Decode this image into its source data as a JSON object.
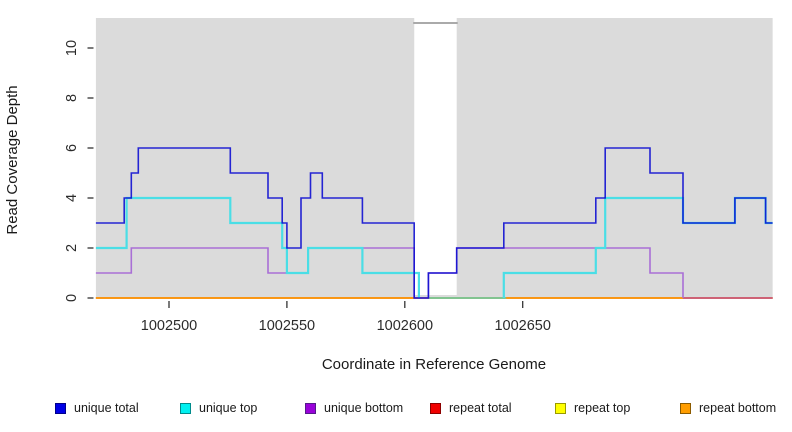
{
  "chart_data": {
    "type": "line",
    "subtype": "step-coverage",
    "xlabel": "Coordinate in Reference Genome",
    "ylabel": "Read Coverage Depth",
    "xlim": [
      1002469,
      1002756
    ],
    "ylim": [
      0,
      11.2
    ],
    "grid": false,
    "plot_bg_color": "#dbdbdb",
    "x_ticks": [
      {
        "value": 1002500,
        "label": "1002500"
      },
      {
        "value": 1002550,
        "label": "1002550"
      },
      {
        "value": 1002600,
        "label": "1002600"
      },
      {
        "value": 1002650,
        "label": "1002650"
      }
    ],
    "y_ticks": [
      {
        "value": 0,
        "label": "0"
      },
      {
        "value": 2,
        "label": "2"
      },
      {
        "value": 4,
        "label": "4"
      },
      {
        "value": 6,
        "label": "6"
      },
      {
        "value": 8,
        "label": "8"
      },
      {
        "value": 10,
        "label": "10"
      }
    ],
    "masked_region": {
      "x_start": 1002604,
      "x_end": 1002622,
      "cap_depth": 11,
      "cap_color": "#9e9e9e"
    },
    "series": [
      {
        "name": "unique total",
        "line_color": "#0a0ad2",
        "paths": [
          {
            "steps": [
              [
                1002469,
                3
              ],
              [
                1002481,
                4
              ],
              [
                1002484,
                5
              ],
              [
                1002487,
                6
              ],
              [
                1002526,
                5
              ],
              [
                1002542,
                4
              ],
              [
                1002548,
                3
              ],
              [
                1002550,
                2
              ],
              [
                1002556,
                4
              ],
              [
                1002560,
                5
              ],
              [
                1002565,
                4
              ],
              [
                1002582,
                3
              ],
              [
                1002604,
                0
              ],
              [
                1002610,
                1
              ],
              [
                1002622,
                2
              ],
              [
                1002642,
                3
              ],
              [
                1002681,
                4
              ],
              [
                1002685,
                6
              ],
              [
                1002704,
                5
              ],
              [
                1002718,
                3
              ],
              [
                1002740,
                4
              ],
              [
                1002753,
                3
              ]
            ],
            "end": 1002756
          }
        ]
      },
      {
        "name": "unique top",
        "line_color": "#4adee6",
        "paths": [
          {
            "steps": [
              [
                1002469,
                2
              ],
              [
                1002482,
                4
              ],
              [
                1002526,
                3
              ],
              [
                1002548,
                2
              ],
              [
                1002550,
                1
              ],
              [
                1002559,
                2
              ],
              [
                1002582,
                1
              ],
              [
                1002606,
                0
              ]
            ],
            "end": 1002606
          },
          {
            "steps": [
              [
                1002642,
                0
              ],
              [
                1002642,
                1
              ],
              [
                1002681,
                2
              ],
              [
                1002685,
                4
              ],
              [
                1002718,
                3
              ],
              [
                1002740,
                4
              ],
              [
                1002753,
                3
              ]
            ],
            "end": 1002756
          }
        ]
      },
      {
        "name": "unique bottom",
        "line_color": "#a96fd6",
        "paths": [
          {
            "steps": [
              [
                1002469,
                1
              ],
              [
                1002484,
                2
              ],
              [
                1002542,
                1
              ],
              [
                1002559,
                2
              ],
              [
                1002604,
                0
              ],
              [
                1002610,
                1
              ],
              [
                1002622,
                2
              ],
              [
                1002704,
                1
              ],
              [
                1002718,
                0
              ]
            ],
            "end": 1002718
          }
        ]
      },
      {
        "name": "repeat total",
        "line_color": "#dd0000",
        "paths": [
          {
            "steps": [
              [
                1002469,
                0
              ]
            ],
            "end": 1002756
          }
        ]
      },
      {
        "name": "repeat top",
        "line_color": "#eeee00",
        "paths": [
          {
            "steps": [
              [
                1002469,
                0
              ]
            ],
            "end": 1002756
          }
        ]
      },
      {
        "name": "repeat bottom",
        "line_color": "#ff8e0a",
        "paths": [
          {
            "steps": [
              [
                1002469,
                0
              ]
            ],
            "end": 1002756
          }
        ]
      }
    ],
    "baseline_overrides": [
      {
        "x_start": 1002610,
        "x_end": 1002643,
        "depth": 0,
        "color": "#72c9a0"
      },
      {
        "x_start": 1002718,
        "x_end": 1002756,
        "depth": 0,
        "color": "#c85a82"
      }
    ]
  },
  "legend": {
    "items": [
      {
        "label": "unique total",
        "fill": "#0000e6",
        "border": "#00008b"
      },
      {
        "label": "unique top",
        "fill": "#00f0f0",
        "border": "#008b8b"
      },
      {
        "label": "unique bottom",
        "fill": "#9902d9",
        "border": "#551a8b"
      },
      {
        "label": "repeat total",
        "fill": "#f00000",
        "border": "#8b0000"
      },
      {
        "label": "repeat top",
        "fill": "#ffff00",
        "border": "#9a9a00"
      },
      {
        "label": "repeat bottom",
        "fill": "#ff9d00",
        "border": "#8b5a00"
      }
    ]
  }
}
